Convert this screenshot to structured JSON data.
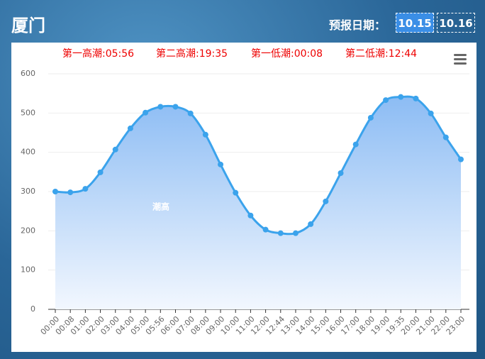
{
  "header": {
    "city": "厦门",
    "date_label": "预报日期：",
    "dates": [
      "10.15",
      "10.16"
    ]
  },
  "chart_data": {
    "type": "line",
    "subtitle_items": [
      "第一高潮:05:56",
      "第二高潮:19:35",
      "第一低潮:00:08",
      "第二低潮:12:44"
    ],
    "categories": [
      "00:00",
      "00:08",
      "01:00",
      "02:00",
      "03:00",
      "04:00",
      "05:00",
      "05:56",
      "06:00",
      "07:00",
      "08:00",
      "09:00",
      "10:00",
      "11:00",
      "12:00",
      "12:44",
      "13:00",
      "14:00",
      "15:00",
      "16:00",
      "17:00",
      "18:00",
      "19:00",
      "19:35",
      "20:00",
      "21:00",
      "22:00",
      "23:00"
    ],
    "series": [
      {
        "name": "潮高",
        "color": "#3ba3ec",
        "values": [
          300,
          298,
          307,
          349,
          407,
          461,
          501,
          516,
          516,
          499,
          445,
          369,
          297,
          239,
          203,
          194,
          194,
          217,
          275,
          347,
          420,
          488,
          533,
          541,
          537,
          499,
          438,
          382
        ]
      }
    ],
    "ylim": [
      0,
      600
    ],
    "yticks": [
      0,
      100,
      200,
      300,
      400,
      500,
      600
    ],
    "grid": true,
    "area": true
  }
}
